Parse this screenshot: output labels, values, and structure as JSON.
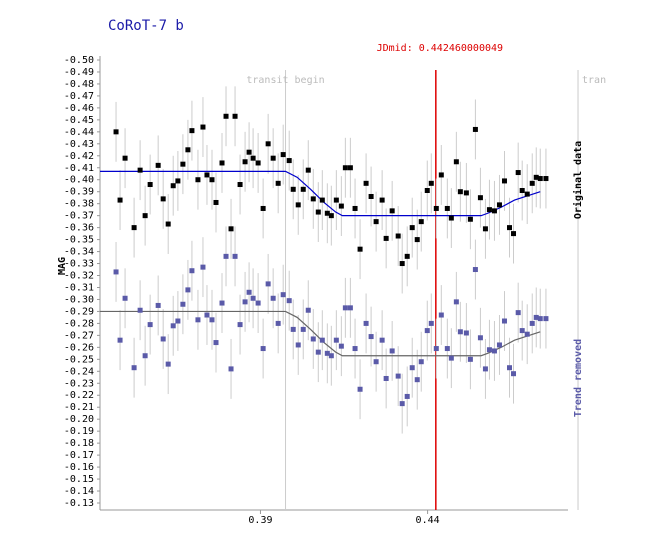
{
  "chart_data": {
    "type": "scatter",
    "title": "CoRoT-7 b",
    "y_label": "MAG",
    "xlim": [
      0.342,
      0.482
    ],
    "xticks": [
      0.39,
      0.44
    ],
    "ylim": [
      -0.5,
      -0.13
    ],
    "y_reversed": true,
    "yticks": [
      {
        "value": -0.5,
        "label": "-0.50"
      },
      -0.49,
      -0.48,
      -0.47,
      -0.46,
      -0.45,
      -0.44,
      -0.43,
      -0.42,
      -0.41,
      {
        "value": -0.4,
        "label": "-0.40"
      },
      -0.39,
      -0.38,
      -0.37,
      -0.36,
      -0.35,
      -0.34,
      -0.33,
      -0.32,
      -0.31,
      {
        "value": -0.3,
        "label": "-0.30"
      },
      -0.29,
      -0.28,
      -0.27,
      -0.26,
      -0.25,
      -0.24,
      -0.23,
      -0.22,
      -0.21,
      {
        "value": -0.2,
        "label": "-0.20"
      },
      -0.19,
      -0.18,
      -0.17,
      -0.16,
      -0.15,
      -0.14,
      -0.13
    ],
    "x": [
      0.3468,
      0.348,
      0.3495,
      0.3522,
      0.354,
      0.3555,
      0.357,
      0.3594,
      0.3609,
      0.3624,
      0.3639,
      0.3653,
      0.3668,
      0.3683,
      0.3695,
      0.3713,
      0.3728,
      0.374,
      0.3755,
      0.3767,
      0.3785,
      0.3797,
      0.3812,
      0.3824,
      0.3839,
      0.3854,
      0.3866,
      0.3878,
      0.3893,
      0.3908,
      0.3923,
      0.3938,
      0.3953,
      0.3968,
      0.3986,
      0.3998,
      0.4013,
      0.4028,
      0.4043,
      0.4058,
      0.4073,
      0.4085,
      0.41,
      0.4112,
      0.4127,
      0.4142,
      0.4154,
      0.4169,
      0.4183,
      0.4198,
      0.4216,
      0.4231,
      0.4246,
      0.4264,
      0.4276,
      0.4294,
      0.4312,
      0.4324,
      0.4339,
      0.4354,
      0.4369,
      0.4381,
      0.4399,
      0.4411,
      0.4426,
      0.4441,
      0.4459,
      0.4471,
      0.4486,
      0.4498,
      0.4516,
      0.4528,
      0.4543,
      0.4558,
      0.4573,
      0.4585,
      0.46,
      0.4615,
      0.463,
      0.4645,
      0.4657,
      0.4671,
      0.4683,
      0.4698,
      0.4713,
      0.4725,
      0.4737,
      0.4754
    ],
    "series": [
      {
        "name": "Original data",
        "color": "#000000",
        "error": 0.025,
        "values": [
          -0.44,
          -0.383,
          -0.418,
          -0.36,
          -0.408,
          -0.37,
          -0.396,
          -0.412,
          -0.384,
          -0.363,
          -0.395,
          -0.399,
          -0.413,
          -0.425,
          -0.441,
          -0.4,
          -0.444,
          -0.404,
          -0.4,
          -0.381,
          -0.414,
          -0.453,
          -0.359,
          -0.453,
          -0.396,
          -0.415,
          -0.423,
          -0.418,
          -0.414,
          -0.376,
          -0.43,
          -0.418,
          -0.397,
          -0.421,
          -0.416,
          -0.392,
          -0.379,
          -0.392,
          -0.408,
          -0.384,
          -0.373,
          -0.383,
          -0.372,
          -0.37,
          -0.383,
          -0.378,
          -0.41,
          -0.41,
          -0.376,
          -0.342,
          -0.397,
          -0.386,
          -0.365,
          -0.383,
          -0.351,
          -0.374,
          -0.353,
          -0.33,
          -0.336,
          -0.36,
          -0.35,
          -0.365,
          -0.391,
          -0.397,
          -0.376,
          -0.404,
          -0.376,
          -0.368,
          -0.415,
          -0.39,
          -0.389,
          -0.367,
          -0.442,
          -0.385,
          -0.359,
          -0.375,
          -0.374,
          -0.379,
          -0.399,
          -0.36,
          -0.355,
          -0.406,
          -0.391,
          -0.388,
          -0.397,
          -0.402,
          -0.401,
          -0.401
        ]
      },
      {
        "name": "Trend removed",
        "color": "#5a5aa8",
        "error": 0.025,
        "values": [
          -0.323,
          -0.266,
          -0.301,
          -0.243,
          -0.291,
          -0.253,
          -0.279,
          -0.295,
          -0.267,
          -0.246,
          -0.278,
          -0.282,
          -0.296,
          -0.308,
          -0.324,
          -0.283,
          -0.327,
          -0.287,
          -0.283,
          -0.264,
          -0.297,
          -0.336,
          -0.242,
          -0.336,
          -0.279,
          -0.298,
          -0.306,
          -0.301,
          -0.297,
          -0.259,
          -0.313,
          -0.301,
          -0.28,
          -0.304,
          -0.299,
          -0.275,
          -0.262,
          -0.275,
          -0.291,
          -0.267,
          -0.256,
          -0.266,
          -0.255,
          -0.253,
          -0.266,
          -0.261,
          -0.293,
          -0.293,
          -0.259,
          -0.225,
          -0.28,
          -0.269,
          -0.248,
          -0.266,
          -0.234,
          -0.257,
          -0.236,
          -0.213,
          -0.219,
          -0.243,
          -0.233,
          -0.248,
          -0.274,
          -0.28,
          -0.259,
          -0.287,
          -0.259,
          -0.251,
          -0.298,
          -0.273,
          -0.272,
          -0.25,
          -0.325,
          -0.268,
          -0.242,
          -0.258,
          -0.257,
          -0.262,
          -0.282,
          -0.243,
          -0.238,
          -0.289,
          -0.274,
          -0.271,
          -0.28,
          -0.285,
          -0.284,
          -0.284
        ]
      }
    ],
    "fits": [
      {
        "color": "#0000cc",
        "x": [
          0.342,
          0.3975,
          0.401,
          0.405,
          0.409,
          0.4125,
          0.4145,
          0.456,
          0.458,
          0.462,
          0.466,
          0.4737
        ],
        "values": [
          -0.407,
          -0.407,
          -0.402,
          -0.392,
          -0.381,
          -0.373,
          -0.37,
          -0.37,
          -0.372,
          -0.377,
          -0.383,
          -0.39
        ]
      },
      {
        "color": "#666666",
        "x": [
          0.342,
          0.3975,
          0.401,
          0.405,
          0.409,
          0.4125,
          0.4145,
          0.456,
          0.458,
          0.462,
          0.466,
          0.4737
        ],
        "values": [
          -0.29,
          -0.29,
          -0.285,
          -0.275,
          -0.264,
          -0.256,
          -0.253,
          -0.253,
          -0.255,
          -0.26,
          -0.266,
          -0.273
        ]
      }
    ],
    "vlines": [
      {
        "x": 0.3975,
        "label": "transit begin",
        "color": "#cccccc"
      },
      {
        "x": 0.44246,
        "label": "JDmid: 0.442460000049",
        "color": "#dd0000"
      },
      {
        "x": 0.485,
        "label": "tran",
        "color": "#cccccc"
      }
    ]
  }
}
